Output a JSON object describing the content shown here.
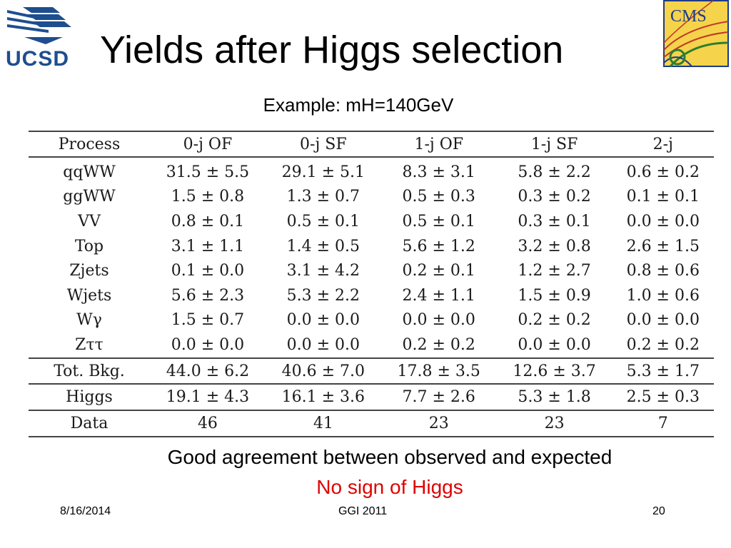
{
  "slide": {
    "title": "Yields after Higgs selection",
    "subtitle": "Example: mH=140GeV",
    "logos": {
      "left": "UCSD",
      "right": "CMS"
    },
    "colors": {
      "accent_red": "#e00000",
      "ucsd_blue": "#1d4e8f",
      "cms_gold": "#f5d34a",
      "cms_blue": "#1e3a8a"
    }
  },
  "table": {
    "headers": [
      "Process",
      "0-j OF",
      "0-j SF",
      "1-j OF",
      "1-j SF",
      "2-j"
    ],
    "processes": [
      [
        "qqWW",
        "31.5 ± 5.5",
        "29.1 ± 5.1",
        "8.3 ± 3.1",
        "5.8 ± 2.2",
        "0.6 ± 0.2"
      ],
      [
        "ggWW",
        "1.5 ± 0.8",
        "1.3 ± 0.7",
        "0.5 ± 0.3",
        "0.3 ± 0.2",
        "0.1 ± 0.1"
      ],
      [
        "VV",
        "0.8 ± 0.1",
        "0.5 ± 0.1",
        "0.5 ± 0.1",
        "0.3 ± 0.1",
        "0.0 ± 0.0"
      ],
      [
        "Top",
        "3.1 ± 1.1",
        "1.4 ± 0.5",
        "5.6 ± 1.2",
        "3.2 ± 0.8",
        "2.6 ± 1.5"
      ],
      [
        "Zjets",
        "0.1 ± 0.0",
        "3.1 ± 4.2",
        "0.2 ± 0.1",
        "1.2 ± 2.7",
        "0.8 ± 0.6"
      ],
      [
        "Wjets",
        "5.6 ± 2.3",
        "5.3 ± 2.2",
        "2.4 ± 1.1",
        "1.5 ± 0.9",
        "1.0 ± 0.6"
      ],
      [
        "Wγ",
        "1.5 ± 0.7",
        "0.0 ± 0.0",
        "0.0 ± 0.0",
        "0.2 ± 0.2",
        "0.0 ± 0.0"
      ],
      [
        "Zττ",
        "0.0 ± 0.0",
        "0.0 ± 0.0",
        "0.2 ± 0.2",
        "0.0 ± 0.0",
        "0.2 ± 0.2"
      ]
    ],
    "total": [
      "Tot. Bkg.",
      "44.0 ± 6.2",
      "40.6 ± 7.0",
      "17.8 ± 3.5",
      "12.6 ± 3.7",
      "5.3 ± 1.7"
    ],
    "higgs": [
      "Higgs",
      "19.1 ± 4.3",
      "16.1 ± 3.6",
      "7.7 ± 2.6",
      "5.3 ± 1.8",
      "2.5 ± 0.3"
    ],
    "data": [
      "Data",
      "46",
      "41",
      "23",
      "23",
      "7"
    ]
  },
  "messages": {
    "line1": "Good agreement between observed and expected",
    "line2": "No sign of Higgs"
  },
  "footer": {
    "date": "8/16/2014",
    "center": "GGI 2011",
    "page": "20"
  }
}
